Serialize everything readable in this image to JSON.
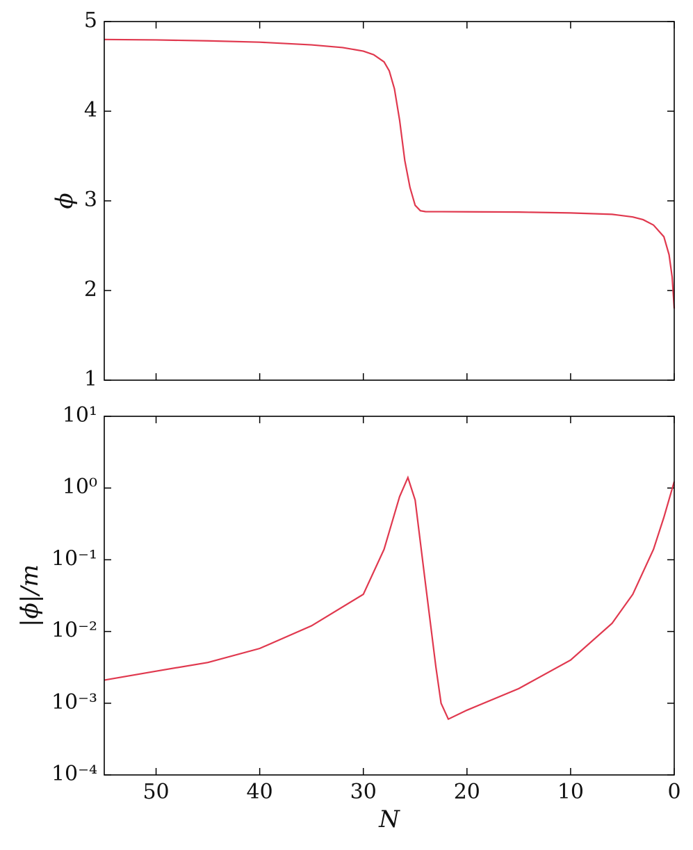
{
  "chart_data": [
    {
      "type": "line",
      "ylabel": "ϕ",
      "color": "#e0384e",
      "x": [
        55,
        50,
        45,
        40,
        35,
        32,
        30,
        29,
        28,
        27.5,
        27,
        26.5,
        26,
        25.5,
        25,
        24.5,
        24,
        20,
        15,
        10,
        6,
        4,
        3,
        2,
        1,
        0.5,
        0.2,
        0
      ],
      "values": [
        4.8,
        4.795,
        4.785,
        4.77,
        4.74,
        4.71,
        4.67,
        4.63,
        4.55,
        4.45,
        4.25,
        3.9,
        3.45,
        3.15,
        2.95,
        2.89,
        2.88,
        2.878,
        2.875,
        2.865,
        2.85,
        2.82,
        2.79,
        2.73,
        2.6,
        2.4,
        2.15,
        1.8
      ],
      "xlim": [
        55,
        0
      ],
      "xticks": [
        50,
        40,
        30,
        20,
        10,
        0
      ],
      "show_xtick_labels": false,
      "ylim": [
        1,
        5
      ],
      "yticks": [
        1,
        2,
        3,
        4,
        5
      ],
      "log_y": false
    },
    {
      "type": "line",
      "xlabel": "N",
      "ylabel": "|ϕ̇|/m",
      "color": "#e0384e",
      "x": [
        55,
        50,
        45,
        40,
        35,
        30,
        28,
        26.5,
        25.7,
        25,
        24,
        23,
        22.5,
        21.8,
        20,
        15,
        10,
        6,
        4,
        2,
        1,
        0
      ],
      "values": [
        0.0021,
        0.0028,
        0.0037,
        0.0058,
        0.012,
        0.033,
        0.14,
        0.76,
        1.4,
        0.68,
        0.046,
        0.0032,
        0.001,
        0.0006,
        0.0008,
        0.0016,
        0.004,
        0.013,
        0.033,
        0.14,
        0.39,
        1.23
      ],
      "xlim": [
        55,
        0
      ],
      "xticks": [
        50,
        40,
        30,
        20,
        10,
        0
      ],
      "show_xtick_labels": true,
      "ylim": [
        0.0001,
        10
      ],
      "log_y": true,
      "yticks": [
        {
          "value": 0.0001,
          "label": "10⁻⁴"
        },
        {
          "value": 0.001,
          "label": "10⁻³"
        },
        {
          "value": 0.01,
          "label": "10⁻²"
        },
        {
          "value": 0.1,
          "label": "10⁻¹"
        },
        {
          "value": 1,
          "label": "10⁰"
        },
        {
          "value": 10,
          "label": "10¹"
        }
      ]
    }
  ]
}
